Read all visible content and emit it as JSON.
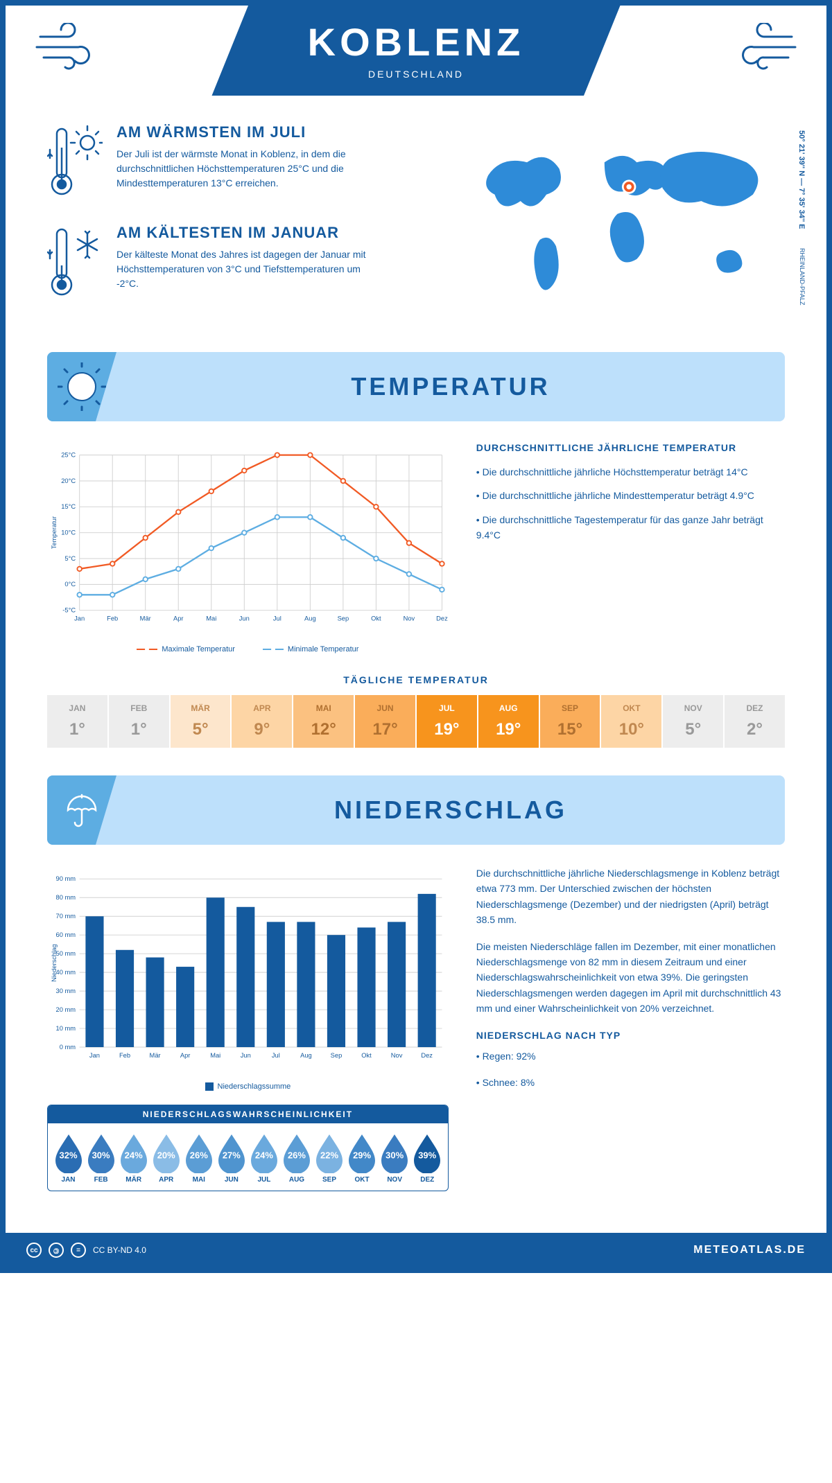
{
  "header": {
    "city": "KOBLENZ",
    "country": "DEUTSCHLAND"
  },
  "coords": "50° 21' 39'' N — 7° 35' 34'' E",
  "region": "RHEINLAND-PFALZ",
  "warm": {
    "title": "AM WÄRMSTEN IM JULI",
    "text": "Der Juli ist der wärmste Monat in Koblenz, in dem die durchschnittlichen Höchsttemperaturen 25°C und die Mindesttemperaturen 13°C erreichen."
  },
  "cold": {
    "title": "AM KÄLTESTEN IM JANUAR",
    "text": "Der kälteste Monat des Jahres ist dagegen der Januar mit Höchsttemperaturen von 3°C und Tiefsttemperaturen um -2°C."
  },
  "sections": {
    "temp": "TEMPERATUR",
    "precip": "NIEDERSCHLAG"
  },
  "temp_chart": {
    "type": "line",
    "months": [
      "Jan",
      "Feb",
      "Mär",
      "Apr",
      "Mai",
      "Jun",
      "Jul",
      "Aug",
      "Sep",
      "Okt",
      "Nov",
      "Dez"
    ],
    "max_values": [
      3,
      4,
      9,
      14,
      18,
      22,
      25,
      25,
      20,
      15,
      8,
      4
    ],
    "min_values": [
      -2,
      -2,
      1,
      3,
      7,
      10,
      13,
      13,
      9,
      5,
      2,
      -1
    ],
    "max_color": "#f15a24",
    "min_color": "#5dade2",
    "ylim": [
      -5,
      25
    ],
    "ytick_step": 5,
    "ylabel": "Temperatur",
    "grid_color": "#d0d0d0",
    "legend": {
      "max": "Maximale Temperatur",
      "min": "Minimale Temperatur"
    }
  },
  "temp_text": {
    "title": "DURCHSCHNITTLICHE JÄHRLICHE TEMPERATUR",
    "b1": "• Die durchschnittliche jährliche Höchsttemperatur beträgt 14°C",
    "b2": "• Die durchschnittliche jährliche Mindesttemperatur beträgt 4.9°C",
    "b3": "• Die durchschnittliche Tagestemperatur für das ganze Jahr beträgt 9.4°C"
  },
  "daily": {
    "title": "TÄGLICHE TEMPERATUR",
    "months": [
      "JAN",
      "FEB",
      "MÄR",
      "APR",
      "MAI",
      "JUN",
      "JUL",
      "AUG",
      "SEP",
      "OKT",
      "NOV",
      "DEZ"
    ],
    "values": [
      "1°",
      "1°",
      "5°",
      "9°",
      "12°",
      "17°",
      "19°",
      "19°",
      "15°",
      "10°",
      "5°",
      "2°"
    ],
    "colors": [
      "#ededed",
      "#ededed",
      "#fde6cc",
      "#fdd5a5",
      "#fbc180",
      "#faad5a",
      "#f7941d",
      "#f7941d",
      "#faad5a",
      "#fdd5a5",
      "#ededed",
      "#ededed"
    ],
    "text_colors": [
      "#999",
      "#999",
      "#c08850",
      "#c08850",
      "#b07030",
      "#b07030",
      "#fff",
      "#fff",
      "#b07030",
      "#c08850",
      "#999",
      "#999"
    ]
  },
  "precip_chart": {
    "type": "bar",
    "months": [
      "Jan",
      "Feb",
      "Mär",
      "Apr",
      "Mai",
      "Jun",
      "Jul",
      "Aug",
      "Sep",
      "Okt",
      "Nov",
      "Dez"
    ],
    "values": [
      70,
      52,
      48,
      43,
      80,
      75,
      67,
      67,
      60,
      64,
      67,
      82
    ],
    "bar_color": "#145a9e",
    "ylim": [
      0,
      90
    ],
    "ytick_step": 10,
    "ylabel": "Niederschlag",
    "legend": "Niederschlagssumme"
  },
  "precip_text": {
    "p1": "Die durchschnittliche jährliche Niederschlagsmenge in Koblenz beträgt etwa 773 mm. Der Unterschied zwischen der höchsten Niederschlagsmenge (Dezember) und der niedrigsten (April) beträgt 38.5 mm.",
    "p2": "Die meisten Niederschläge fallen im Dezember, mit einer monatlichen Niederschlagsmenge von 82 mm in diesem Zeitraum und einer Niederschlagswahrscheinlichkeit von etwa 39%. Die geringsten Niederschlagsmengen werden dagegen im April mit durchschnittlich 43 mm und einer Wahrscheinlichkeit von 20% verzeichnet.",
    "type_title": "NIEDERSCHLAG NACH TYP",
    "type_b1": "• Regen: 92%",
    "type_b2": "• Schnee: 8%"
  },
  "prob": {
    "title": "NIEDERSCHLAGSWAHRSCHEINLICHKEIT",
    "months": [
      "JAN",
      "FEB",
      "MÄR",
      "APR",
      "MAI",
      "JUN",
      "JUL",
      "AUG",
      "SEP",
      "OKT",
      "NOV",
      "DEZ"
    ],
    "values": [
      "32%",
      "30%",
      "24%",
      "20%",
      "26%",
      "27%",
      "24%",
      "26%",
      "22%",
      "29%",
      "30%",
      "39%"
    ],
    "colors": [
      "#2a6db3",
      "#3a7cc0",
      "#6aa9dd",
      "#8abce6",
      "#5b9dd5",
      "#4f94cf",
      "#6aa9dd",
      "#5b9dd5",
      "#7bb2e1",
      "#4288c8",
      "#3a7cc0",
      "#145a9e"
    ]
  },
  "footer": {
    "license": "CC BY-ND 4.0",
    "site": "METEOATLAS.DE"
  }
}
